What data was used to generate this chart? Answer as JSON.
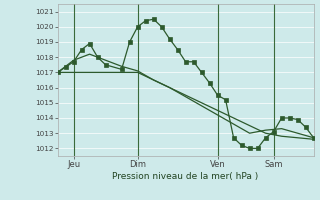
{
  "xlabel": "Pression niveau de la mer( hPa )",
  "bg_color": "#ceeaea",
  "grid_color": "#b8d8d8",
  "line_color": "#2d5a2d",
  "marker_color": "#2d5a2d",
  "ylim": [
    1011.5,
    1021.5
  ],
  "yticks": [
    1012,
    1013,
    1014,
    1015,
    1016,
    1017,
    1018,
    1019,
    1020,
    1021
  ],
  "xlim": [
    0,
    32
  ],
  "day_positions": [
    2,
    10,
    20,
    27
  ],
  "day_labels": [
    "Jeu",
    "Dim",
    "Ven",
    "Sam"
  ],
  "vline_positions": [
    2,
    10,
    20,
    27
  ],
  "series1_x": [
    0,
    2,
    4,
    6,
    8,
    10,
    12,
    14,
    16,
    18,
    20,
    22,
    24,
    26,
    28,
    30,
    32
  ],
  "series1_y": [
    1017.0,
    1017.0,
    1017.0,
    1017.0,
    1017.0,
    1017.0,
    1016.5,
    1016.0,
    1015.5,
    1015.0,
    1014.5,
    1014.0,
    1013.5,
    1013.0,
    1012.8,
    1012.7,
    1012.6
  ],
  "series2_x": [
    0,
    2,
    4,
    6,
    8,
    10,
    12,
    14,
    16,
    18,
    20,
    22,
    24,
    26,
    28,
    30,
    32
  ],
  "series2_y": [
    1017.0,
    1017.8,
    1018.2,
    1017.8,
    1017.4,
    1017.1,
    1016.5,
    1016.0,
    1015.4,
    1014.8,
    1014.2,
    1013.6,
    1013.0,
    1013.2,
    1013.3,
    1013.0,
    1012.7
  ],
  "series3_x": [
    0,
    1,
    2,
    3,
    4,
    5,
    6,
    8,
    9,
    10,
    11,
    12,
    13,
    14,
    15,
    16,
    17,
    18,
    19,
    20,
    21,
    22,
    23,
    24,
    25,
    26,
    27,
    28,
    29,
    30,
    31,
    32
  ],
  "series3_y": [
    1017.0,
    1017.35,
    1017.7,
    1018.5,
    1018.9,
    1018.0,
    1017.5,
    1017.2,
    1019.0,
    1020.0,
    1020.4,
    1020.5,
    1020.0,
    1019.2,
    1018.5,
    1017.7,
    1017.7,
    1017.0,
    1016.3,
    1015.5,
    1015.2,
    1012.7,
    1012.2,
    1012.0,
    1012.0,
    1012.7,
    1013.1,
    1014.0,
    1014.0,
    1013.9,
    1013.4,
    1012.7
  ]
}
